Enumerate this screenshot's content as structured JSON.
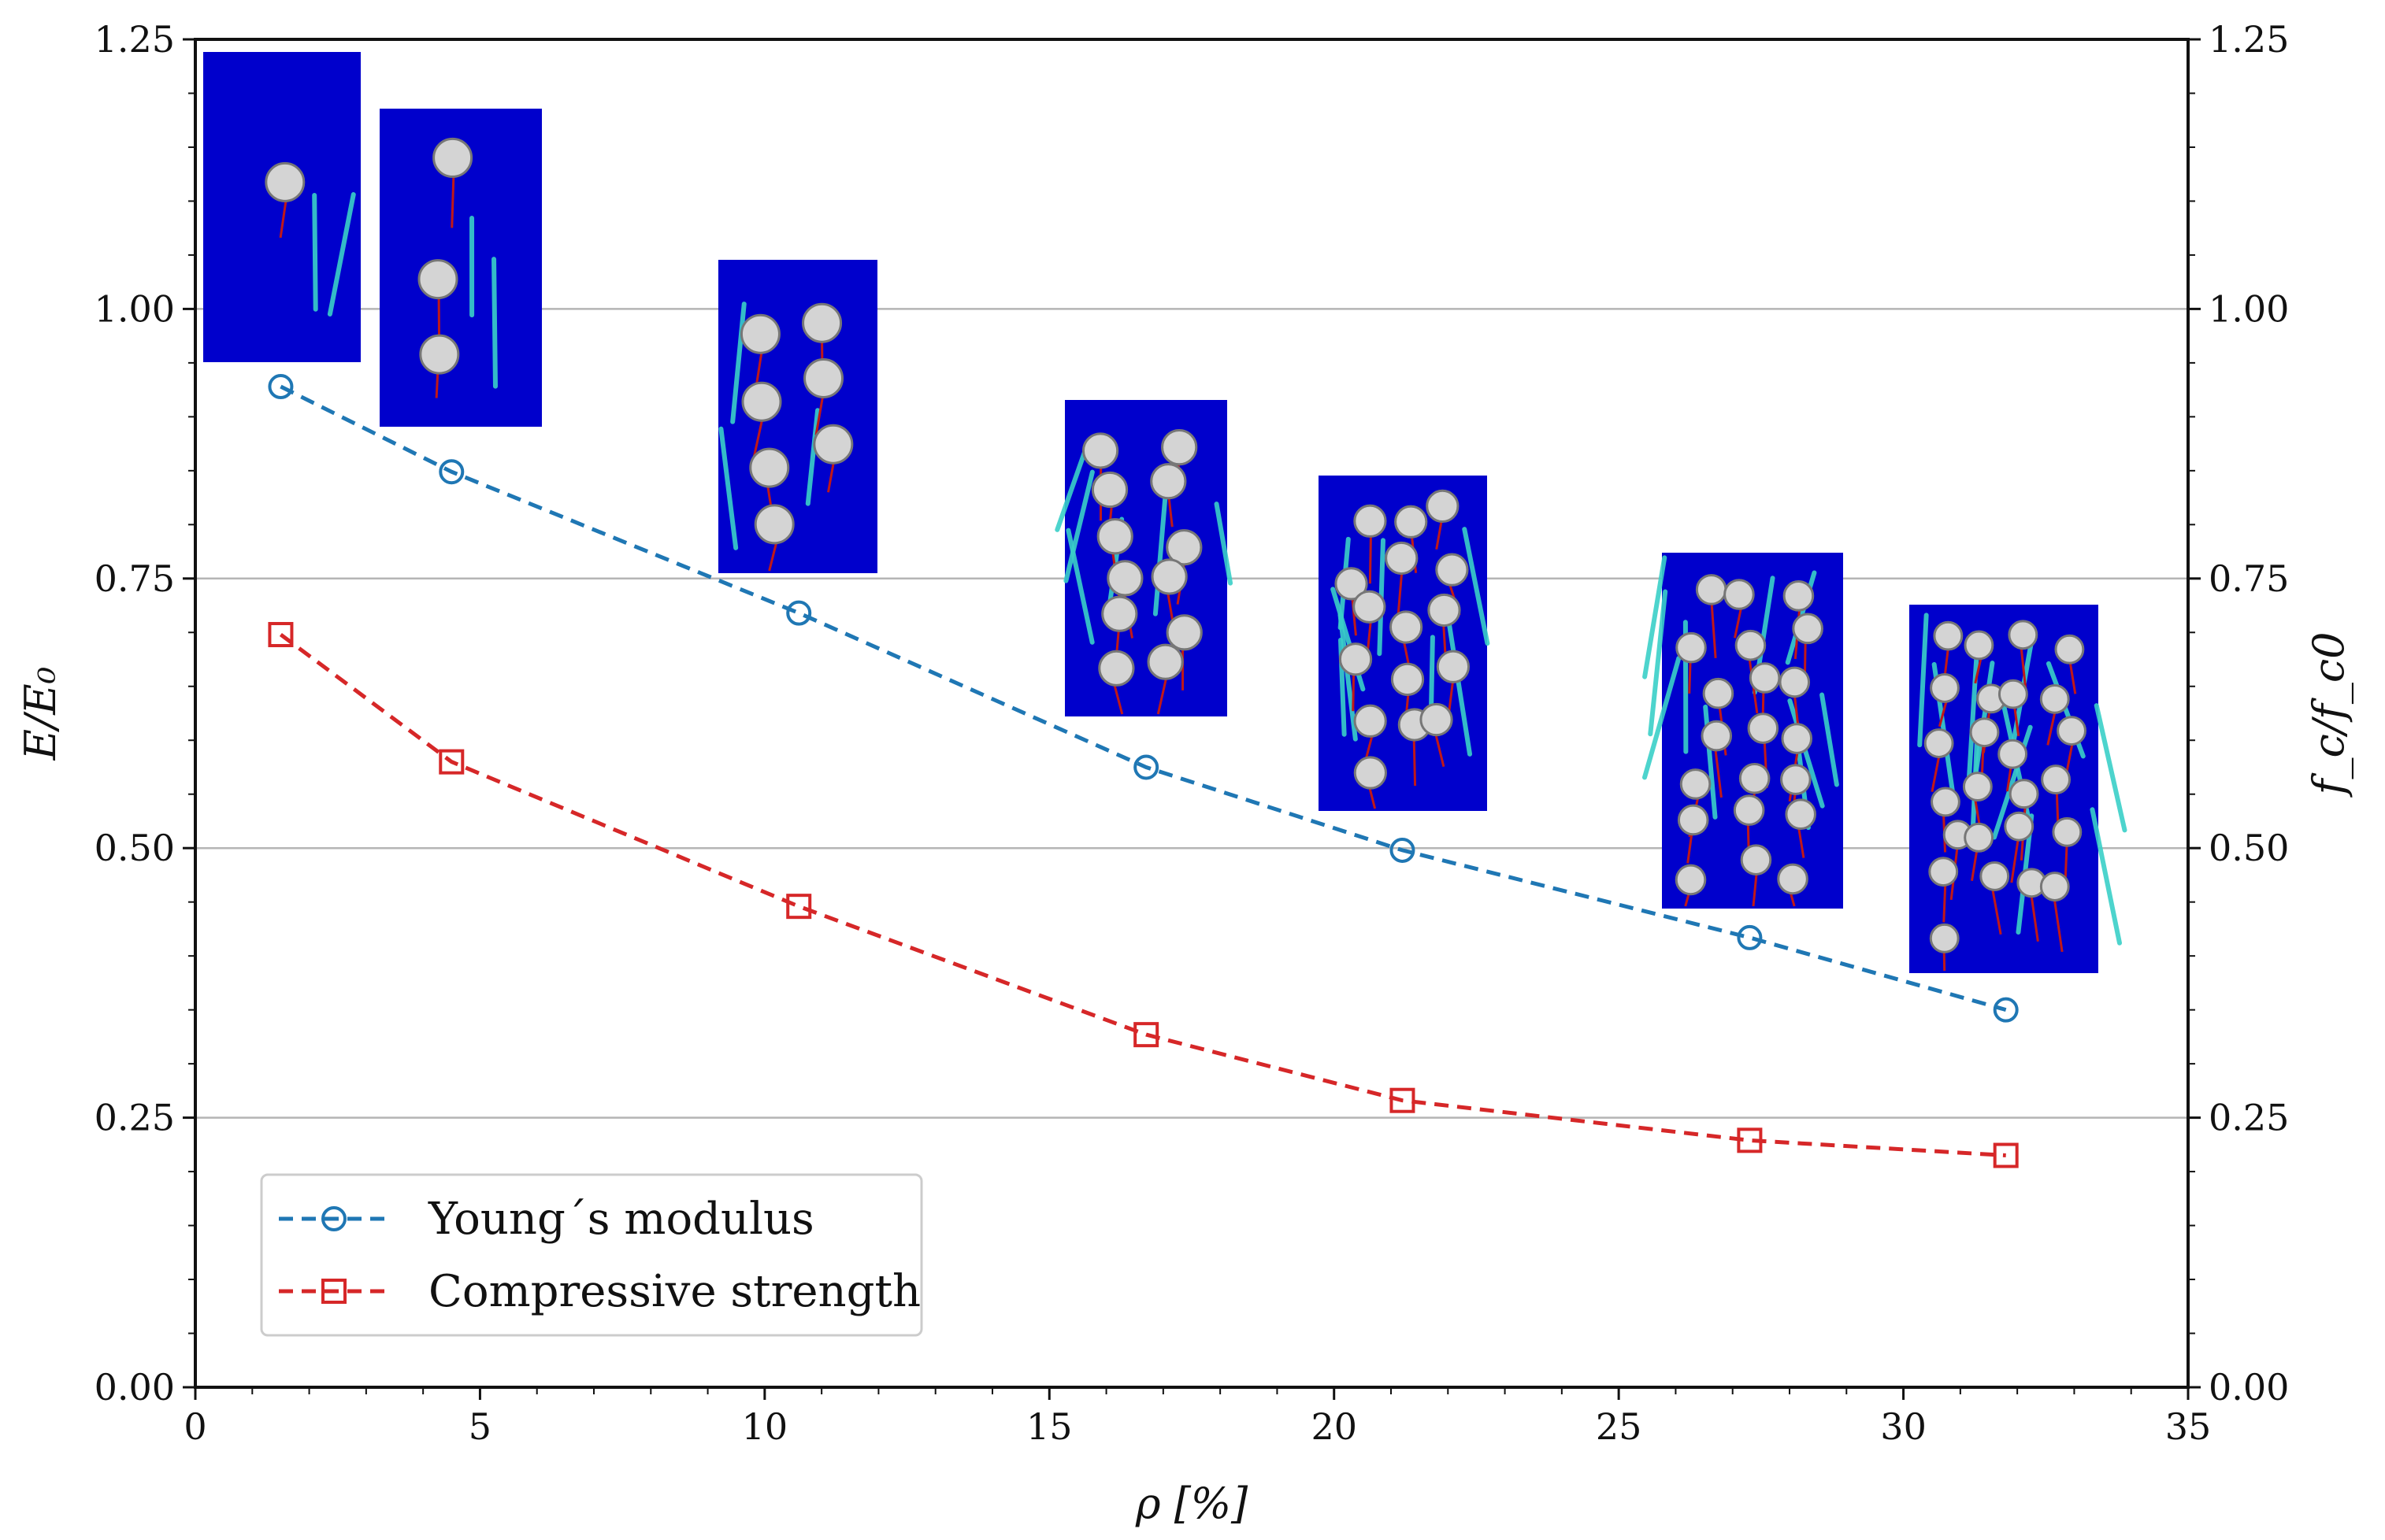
{
  "chart_data": {
    "type": "line",
    "xlabel": "ρ [%]",
    "ylabel": "E/E₀",
    "ylabel_right": "f_c/f_c0",
    "xlim": [
      0,
      35
    ],
    "ylim": [
      0,
      1.25
    ],
    "ylim_right": [
      0,
      1.25
    ],
    "x_ticks": [
      "0",
      "5",
      "10",
      "15",
      "20",
      "25",
      "30",
      "35"
    ],
    "y_ticks": [
      "0.00",
      "0.25",
      "0.50",
      "0.75",
      "1.00",
      "1.25"
    ],
    "y_ticks_right": [
      "0.00",
      "0.25",
      "0.50",
      "0.75",
      "1.00",
      "1.25"
    ],
    "grid": "horizontal",
    "legend_position": "lower-left",
    "series": [
      {
        "name": "Young´s modulus",
        "color": "#1f77b4",
        "marker": "circle",
        "line_style": "dashed",
        "x": [
          1.5,
          4.5,
          10.6,
          16.7,
          21.2,
          27.3,
          31.8
        ],
        "y": [
          0.928,
          0.849,
          0.718,
          0.575,
          0.498,
          0.417,
          0.35
        ]
      },
      {
        "name": "Compressive strength",
        "color": "#d62728",
        "marker": "square",
        "line_style": "dashed",
        "x": [
          1.5,
          4.5,
          10.6,
          16.7,
          21.2,
          27.3,
          31.8
        ],
        "y": [
          0.698,
          0.58,
          0.446,
          0.327,
          0.266,
          0.229,
          0.215
        ]
      }
    ],
    "insets": [
      {
        "description": "specimen crack pattern",
        "aggregate_count": 1
      },
      {
        "description": "specimen crack pattern",
        "aggregate_count": 3
      },
      {
        "description": "specimen crack pattern",
        "aggregate_count": 7
      },
      {
        "description": "specimen crack pattern",
        "aggregate_count": 12
      },
      {
        "description": "specimen crack pattern",
        "aggregate_count": 16
      },
      {
        "description": "specimen crack pattern",
        "aggregate_count": 21
      },
      {
        "description": "specimen crack pattern",
        "aggregate_count": 25
      }
    ],
    "inset_colors": {
      "background": "#0000cc",
      "crack": "#c01818",
      "damage": "#3ad0c8",
      "aggregate": "#d4d4d4"
    }
  }
}
